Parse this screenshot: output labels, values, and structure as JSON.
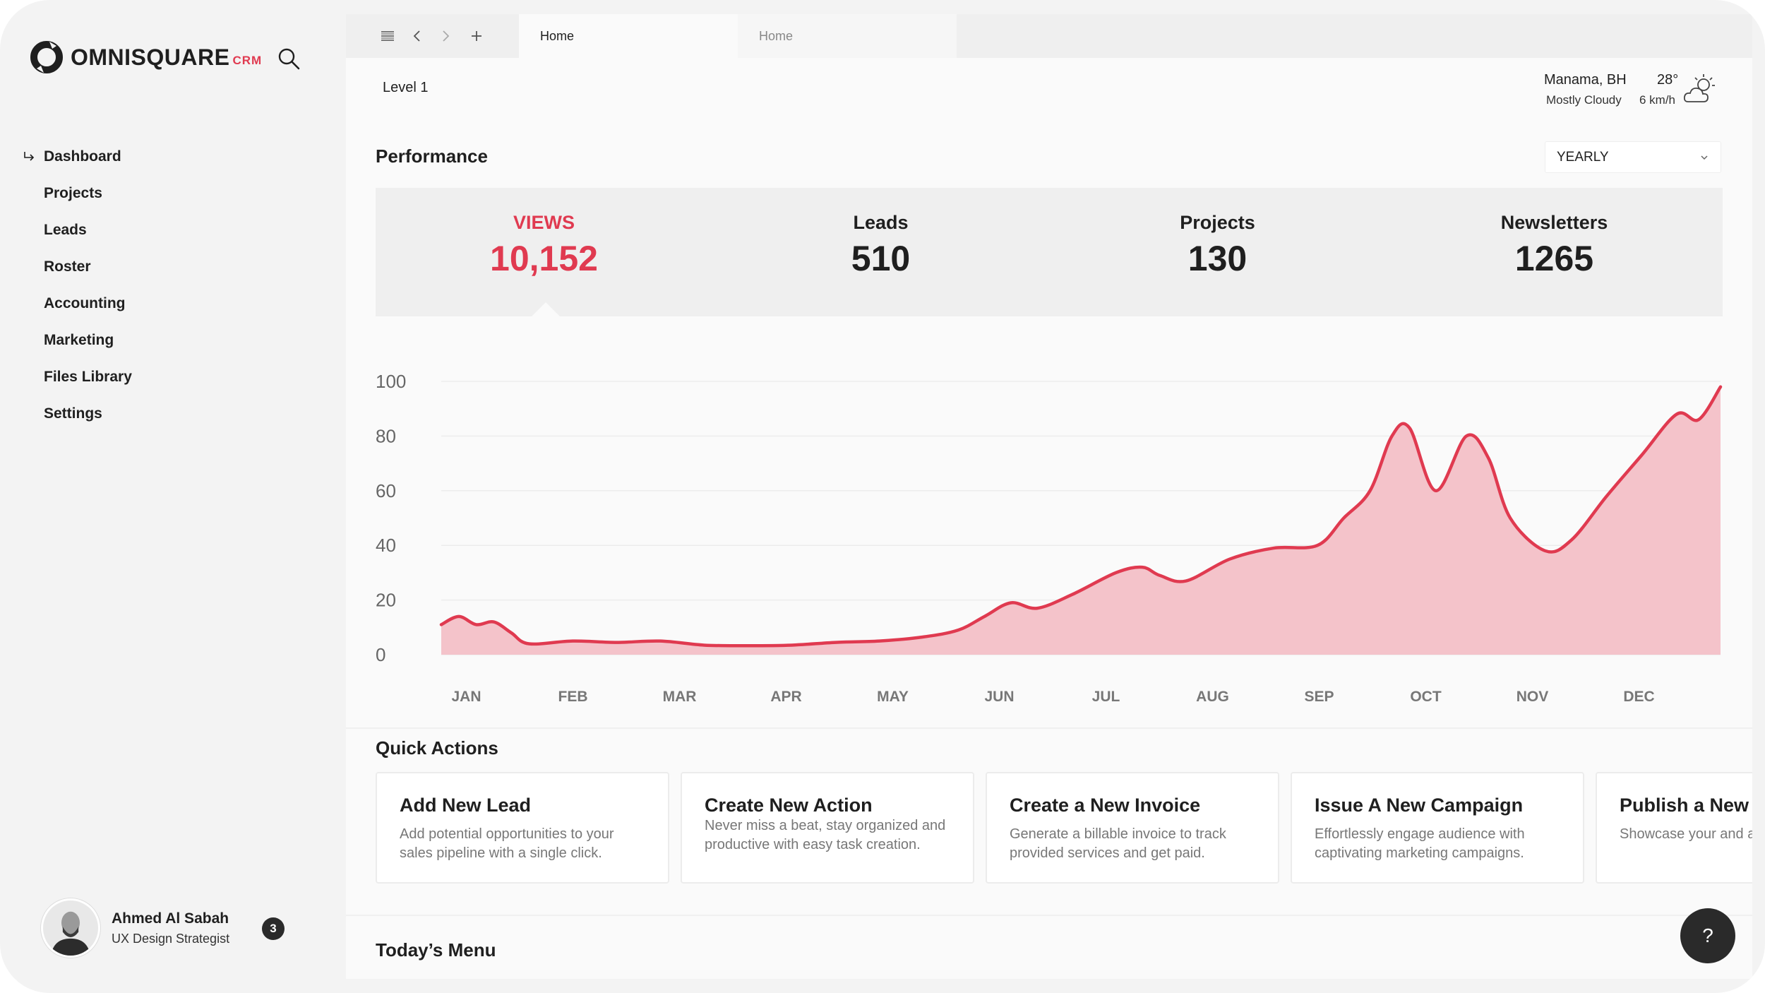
{
  "brand": {
    "name": "OMNISQUARE",
    "suffix": "CRM",
    "accent": "#e03a50"
  },
  "sidebar": {
    "search_icon": "search-icon",
    "items": [
      {
        "label": "Dashboard",
        "active": true
      },
      {
        "label": "Projects"
      },
      {
        "label": "Leads"
      },
      {
        "label": "Roster"
      },
      {
        "label": "Accounting"
      },
      {
        "label": "Marketing"
      },
      {
        "label": "Files Library"
      },
      {
        "label": "Settings"
      }
    ]
  },
  "user": {
    "name": "Ahmed Al Sabah",
    "role": "UX Design Strategist",
    "notifications": "3"
  },
  "tabs": [
    {
      "label": "Home",
      "active": true
    },
    {
      "label": "Home",
      "active": false
    }
  ],
  "breadcrumb": "Level 1",
  "weather": {
    "city": "Manama, BH",
    "temp": "28°",
    "desc": "Mostly Cloudy",
    "wind": "6 km/h",
    "icon": "partly-cloudy-icon"
  },
  "performance": {
    "title": "Performance",
    "period": "YEARLY",
    "stats": [
      {
        "label": "VIEWS",
        "value": "10,152",
        "active": true
      },
      {
        "label": "Leads",
        "value": "510"
      },
      {
        "label": "Projects",
        "value": "130"
      },
      {
        "label": "Newsletters",
        "value": "1265"
      }
    ]
  },
  "chart_data": {
    "type": "area",
    "title": "",
    "xlabel": "",
    "ylabel": "",
    "ylim": [
      0,
      100
    ],
    "yticks": [
      0,
      20,
      40,
      60,
      80,
      100
    ],
    "categories": [
      "JAN",
      "FEB",
      "MAR",
      "APR",
      "MAY",
      "JUN",
      "JUL",
      "AUG",
      "SEP",
      "OCT",
      "NOV",
      "DEC"
    ],
    "grid": true,
    "color": "#e03a50",
    "fill": "#f4c3ca",
    "series": [
      {
        "values": [
          [
            0.0,
            11
          ],
          [
            0.2,
            14
          ],
          [
            0.4,
            11
          ],
          [
            0.6,
            12
          ],
          [
            0.8,
            8
          ],
          [
            1.0,
            4
          ],
          [
            1.5,
            5
          ],
          [
            2.0,
            4.5
          ],
          [
            2.5,
            5
          ],
          [
            3.0,
            3.5
          ],
          [
            3.5,
            3.3
          ],
          [
            4.0,
            3.5
          ],
          [
            4.5,
            4.5
          ],
          [
            5.0,
            5
          ],
          [
            5.5,
            6.5
          ],
          [
            5.9,
            9
          ],
          [
            6.2,
            14
          ],
          [
            6.5,
            19
          ],
          [
            6.8,
            17
          ],
          [
            7.2,
            22
          ],
          [
            7.7,
            30
          ],
          [
            8.0,
            32
          ],
          [
            8.2,
            29
          ],
          [
            8.5,
            27
          ],
          [
            9.0,
            35
          ],
          [
            9.5,
            39
          ],
          [
            10.0,
            40
          ],
          [
            10.3,
            50
          ],
          [
            10.6,
            60
          ],
          [
            10.85,
            80
          ],
          [
            11.05,
            83
          ],
          [
            11.35,
            60
          ],
          [
            11.7,
            80
          ],
          [
            11.95,
            72
          ],
          [
            12.2,
            50
          ],
          [
            12.6,
            38
          ],
          [
            12.9,
            42
          ],
          [
            13.3,
            58
          ],
          [
            13.7,
            73
          ],
          [
            14.1,
            88
          ],
          [
            14.35,
            86
          ],
          [
            14.6,
            98
          ]
        ],
        "x_domain": [
          0,
          14.6
        ]
      }
    ]
  },
  "quick_actions": {
    "title": "Quick Actions",
    "items": [
      {
        "title": "Add New Lead",
        "desc": "Add potential opportunities to your sales pipeline with a single click."
      },
      {
        "title": "Create New Action",
        "desc": "Never miss a beat, stay organized and productive with easy task creation."
      },
      {
        "title": "Create a New Invoice",
        "desc": "Generate a billable invoice to track provided services and get paid."
      },
      {
        "title": "Issue A New Campaign",
        "desc": "Effortlessly engage audience with captivating marketing campaigns."
      },
      {
        "title": "Publish a New",
        "desc": "Showcase your and achievements"
      }
    ]
  },
  "todays_menu": {
    "title": "Today’s Menu"
  },
  "help": {
    "label": "?"
  }
}
